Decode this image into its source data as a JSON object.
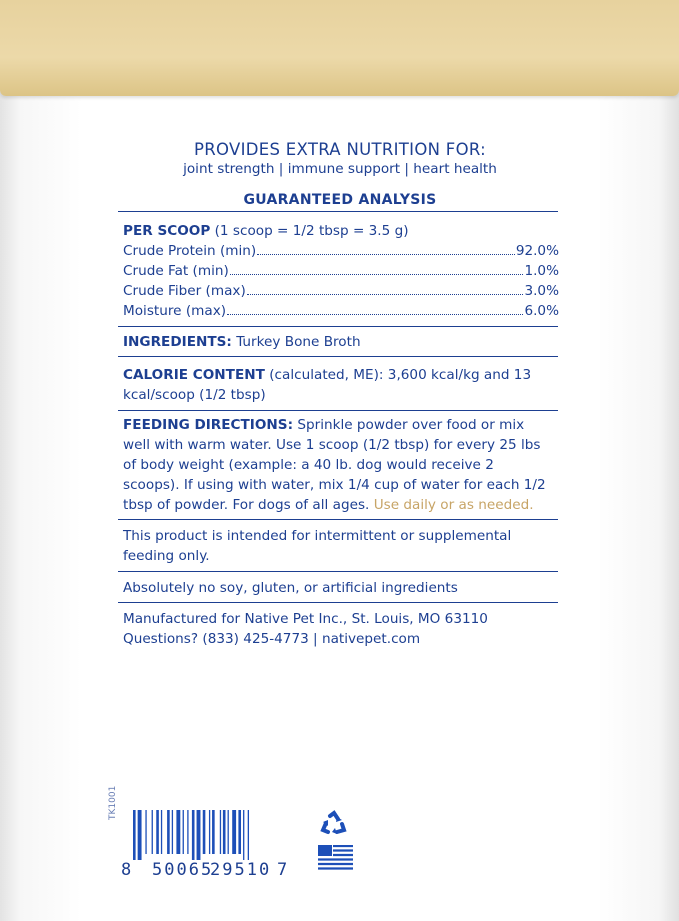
{
  "header": {
    "title": "PROVIDES EXTRA NUTRITION FOR:",
    "benefits": "joint strength | immune support | heart health"
  },
  "analysis": {
    "heading": "GUARANTEED ANALYSIS",
    "per_scoop_label": "PER SCOOP",
    "per_scoop_detail": "(1 scoop = 1/2 tbsp = 3.5 g)",
    "rows": [
      {
        "label": "Crude Protein (min)",
        "value": "92.0%"
      },
      {
        "label": "Crude Fat (min)",
        "value": "1.0%"
      },
      {
        "label": "Crude Fiber (max)",
        "value": "3.0%"
      },
      {
        "label": "Moisture (max)",
        "value": "6.0%"
      }
    ]
  },
  "ingredients": {
    "label": "INGREDIENTS:",
    "text": "Turkey Bone Broth"
  },
  "calorie": {
    "label": "CALORIE CONTENT",
    "line1": "(calculated, ME): 3,600 kcal/kg and 13",
    "line2": "kcal/scoop (1/2 tbsp)"
  },
  "feeding": {
    "label": "FEEDING DIRECTIONS:",
    "line1": "Sprinkle powder over food or mix",
    "line2": "well with warm water. Use 1 scoop (1/2 tbsp) for every 25 lbs",
    "line3": "of body weight (example: a 40 lb. dog would receive 2",
    "line4": "scoops). If using with water, mix 1/4 cup of water for each 1/2",
    "line5": "tbsp of powder. For dogs of all ages.",
    "highlight": "Use daily or as needed."
  },
  "notice": {
    "line1": "This product is intended for intermittent or supplemental",
    "line2": "feeding only."
  },
  "free_from": "Absolutely no soy, gluten, or artificial ingredients",
  "manufacturer": {
    "line1": "Manufactured for Native Pet Inc., St. Louis, MO 63110",
    "line2": "Questions? (833) 425-4773 | nativepet.com"
  },
  "barcode": {
    "code": "TK1001",
    "digits": [
      "8",
      "50065",
      "29510",
      "7"
    ]
  },
  "icons": [
    "recycle-icon",
    "us-flag-icon"
  ],
  "colors": {
    "text": "#1d3f91",
    "accent": "#c7a466",
    "lid": "#e9d5a3"
  }
}
